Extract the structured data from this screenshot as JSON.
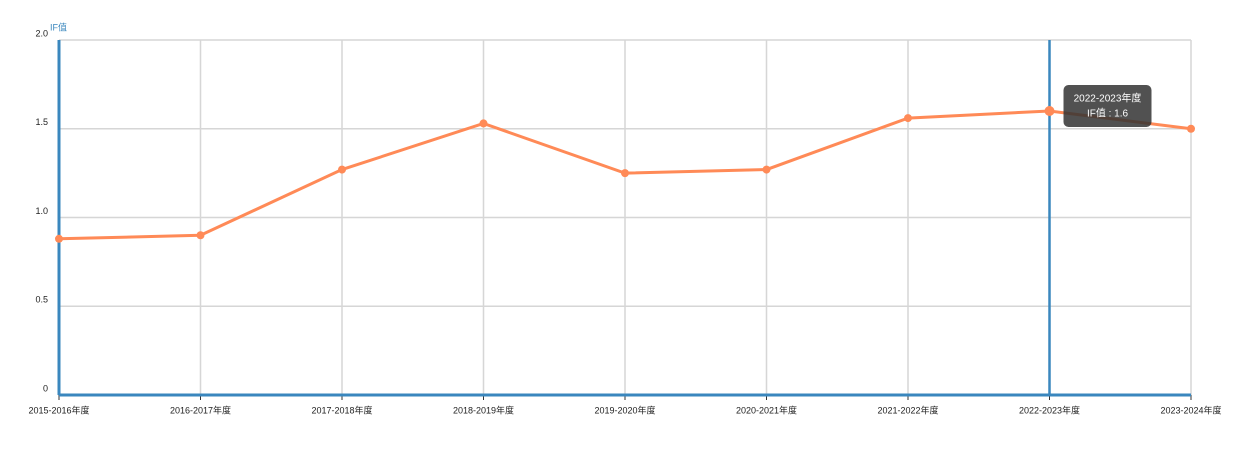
{
  "chart_data": {
    "type": "line",
    "ylabel": "IF值",
    "categories": [
      "2015-2016年度",
      "2016-2017年度",
      "2017-2018年度",
      "2018-2019年度",
      "2019-2020年度",
      "2020-2021年度",
      "2021-2022年度",
      "2022-2023年度",
      "2023-2024年度"
    ],
    "values": [
      0.88,
      0.9,
      1.27,
      1.53,
      1.25,
      1.27,
      1.56,
      1.6,
      1.5
    ],
    "color": "#ff8a57",
    "axis_color": "#3a87be",
    "ylim": [
      0,
      2
    ],
    "yticks": [
      0,
      0.5,
      {
        "value": 1,
        "label": "1.0"
      },
      1.5,
      {
        "value": 2,
        "label": "2.0"
      }
    ],
    "grid": true,
    "tooltip": {
      "title": "2022-2023年度",
      "text": "IF值 : 1.6"
    }
  }
}
